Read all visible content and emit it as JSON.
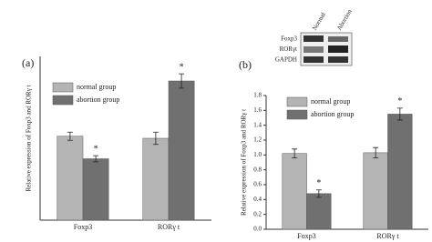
{
  "chart_data": [
    {
      "type": "bar",
      "panel_label": "(a)",
      "y_label": "Relative expression of Foxp3 and RORγ t",
      "categories": [
        "Foxp3",
        "RORγ t"
      ],
      "ylim": [
        0,
        1.6
      ],
      "series": [
        {
          "name": "normal group",
          "color": "#b4b4b4",
          "values": [
            0.82,
            0.8
          ],
          "errors": [
            0.04,
            0.06
          ]
        },
        {
          "name": "abortion group",
          "color": "#707070",
          "values": [
            0.6,
            1.36
          ],
          "errors": [
            0.03,
            0.07
          ],
          "marks": [
            "*",
            "*"
          ]
        }
      ]
    },
    {
      "type": "bar",
      "panel_label": "(b)",
      "y_label": "Relative expression of Foxp3 and RORγ t",
      "categories": [
        "Foxp3",
        "RORγ t"
      ],
      "ylim": [
        0,
        1.8
      ],
      "yticks": [
        {
          "value": 0,
          "label": "0.0"
        },
        0.2,
        0.4,
        0.6,
        0.8,
        {
          "value": 1,
          "label": "1.0"
        },
        1.2,
        1.4,
        1.6,
        1.8
      ],
      "series": [
        {
          "name": "normal group",
          "color": "#b4b4b4",
          "values": [
            1.02,
            1.03
          ],
          "errors": [
            0.06,
            0.07
          ]
        },
        {
          "name": "abortion group",
          "color": "#707070",
          "values": [
            0.48,
            1.55
          ],
          "errors": [
            0.05,
            0.08
          ],
          "marks": [
            "*",
            "*"
          ]
        }
      ]
    }
  ],
  "blot": {
    "columns": [
      "Normal",
      "Abortion"
    ],
    "rows": [
      "Foxp3",
      "RORγt",
      "GAPDH"
    ]
  }
}
